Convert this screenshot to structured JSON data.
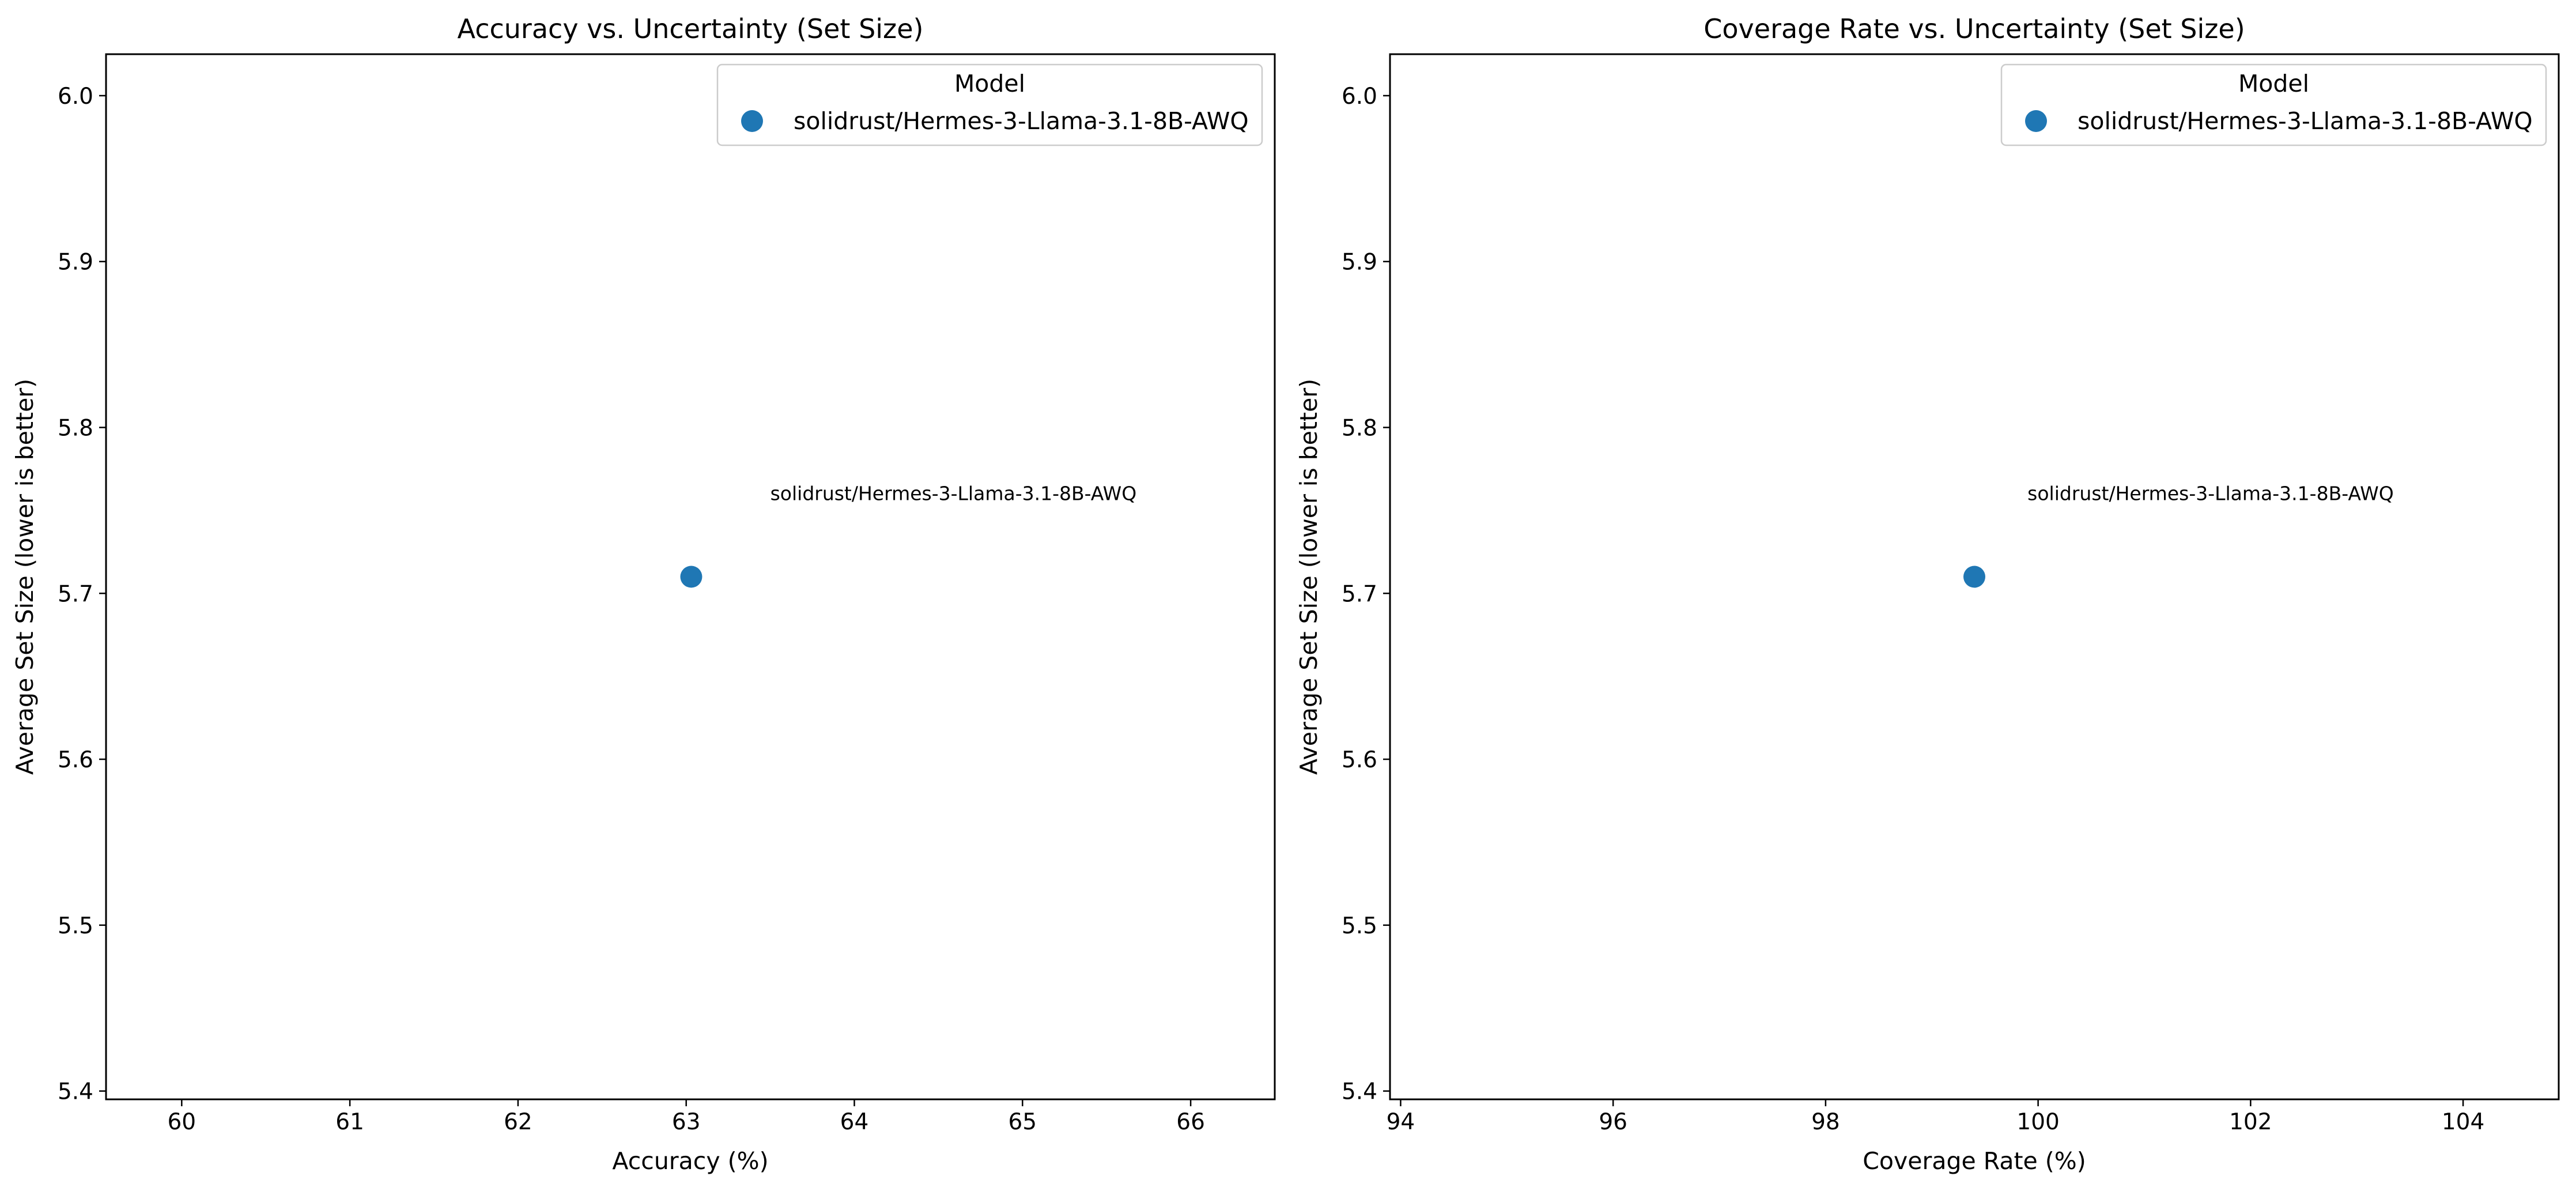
{
  "chart_data": [
    {
      "type": "scatter",
      "title": "Accuracy vs. Uncertainty (Set Size)",
      "xlabel": "Accuracy (%)",
      "ylabel": "Average Set Size (lower is better)",
      "xlim": [
        59.55,
        66.5
      ],
      "ylim": [
        5.395,
        6.025
      ],
      "xticks": [
        "60",
        "61",
        "62",
        "63",
        "64",
        "65",
        "66"
      ],
      "yticks": [
        "5.4",
        "5.5",
        "5.6",
        "5.7",
        "5.8",
        "5.9",
        "6.0"
      ],
      "grid": false,
      "legend": {
        "title": "Model",
        "position": "top-right"
      },
      "series": [
        {
          "name": "solidrust/Hermes-3-Llama-3.1-8B-AWQ",
          "color": "#1f77b4",
          "points": [
            {
              "x": 63.03,
              "y": 5.71
            }
          ]
        }
      ],
      "annotations": [
        {
          "text": "solidrust/Hermes-3-Llama-3.1-8B-AWQ",
          "x": 63.5,
          "y": 5.76
        }
      ]
    },
    {
      "type": "scatter",
      "title": "Coverage Rate vs. Uncertainty (Set Size)",
      "xlabel": "Coverage Rate (%)",
      "ylabel": "Average Set Size (lower is better)",
      "xlim": [
        93.9,
        104.9
      ],
      "ylim": [
        5.395,
        6.025
      ],
      "xticks": [
        "94",
        "96",
        "98",
        "100",
        "102",
        "104"
      ],
      "yticks": [
        "5.4",
        "5.5",
        "5.6",
        "5.7",
        "5.8",
        "5.9",
        "6.0"
      ],
      "grid": false,
      "legend": {
        "title": "Model",
        "position": "top-right"
      },
      "series": [
        {
          "name": "solidrust/Hermes-3-Llama-3.1-8B-AWQ",
          "color": "#1f77b4",
          "points": [
            {
              "x": 99.4,
              "y": 5.71
            }
          ]
        }
      ],
      "annotations": [
        {
          "text": "solidrust/Hermes-3-Llama-3.1-8B-AWQ",
          "x": 99.9,
          "y": 5.76
        }
      ]
    }
  ]
}
